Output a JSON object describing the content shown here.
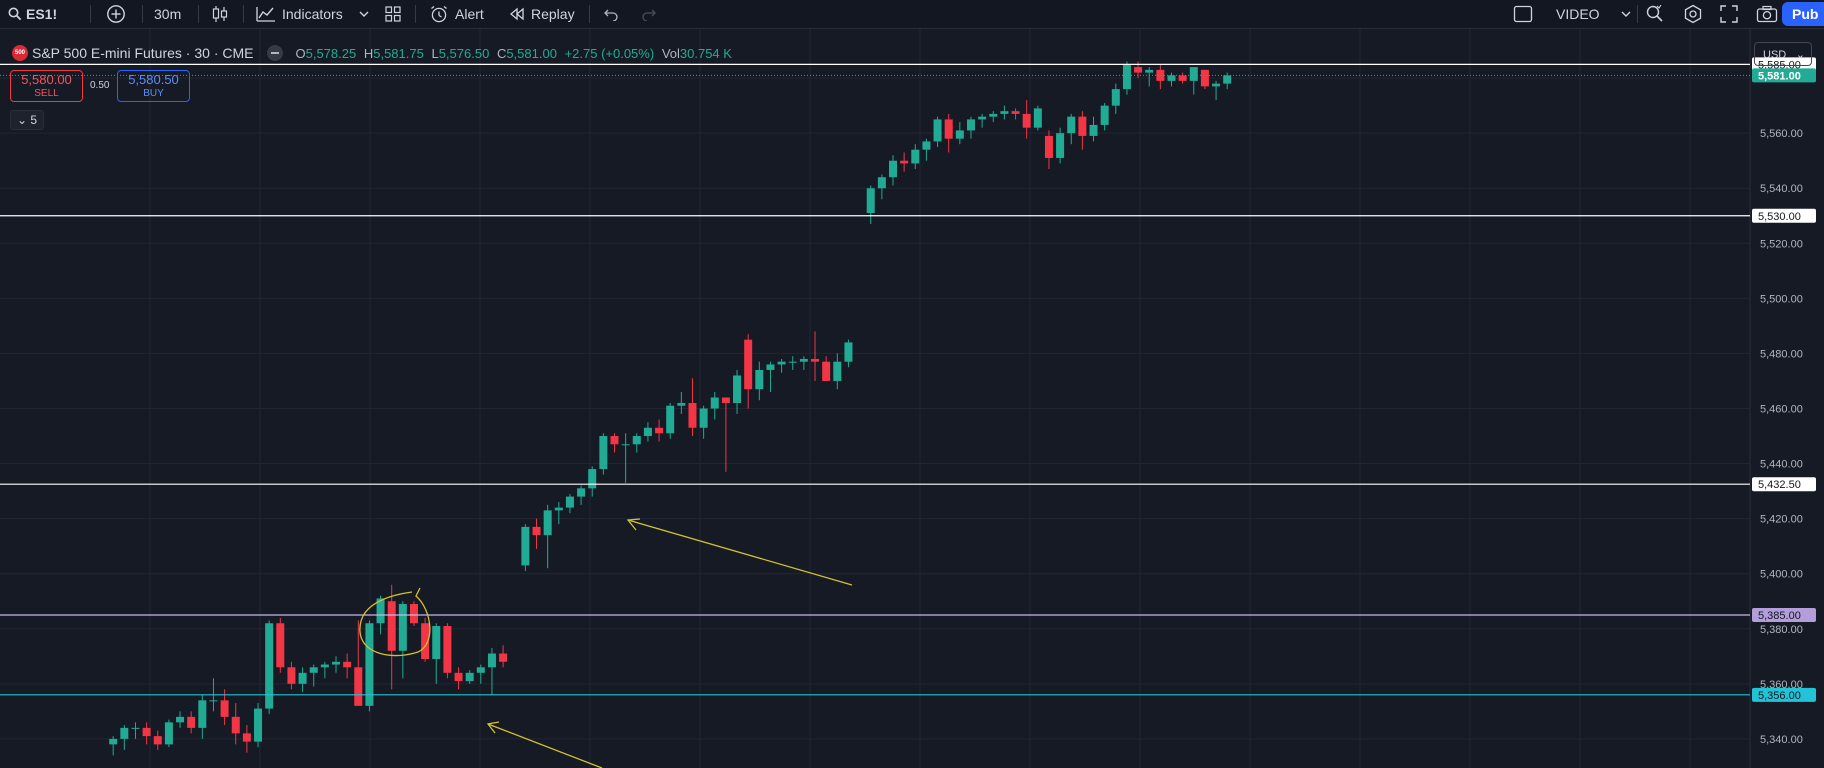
{
  "toolbar": {
    "symbol": "ES1!",
    "interval": "30m",
    "indicators_label": "Indicators",
    "alert_label": "Alert",
    "replay_label": "Replay",
    "video_label": "VIDEO",
    "publish_label": "Pub"
  },
  "legend": {
    "logo_text": "500",
    "title": "S&P 500 E-mini Futures · 30 · CME",
    "o_key": "O",
    "o_val": "5,578.25",
    "h_key": "H",
    "h_val": "5,581.75",
    "l_key": "L",
    "l_val": "5,576.50",
    "c_key": "C",
    "c_val": "5,581.00",
    "change": "+2.75 (+0.05%)",
    "vol_key": "Vol",
    "vol_val": "30.754 K"
  },
  "trade": {
    "sell_price": "5,580.00",
    "sell_label": "SELL",
    "spread": "0.50",
    "buy_price": "5,580.50",
    "buy_label": "BUY"
  },
  "indicator_count": "5",
  "currency": "USD",
  "colors": {
    "up": "#22ab94",
    "down": "#f23645",
    "annotation": "#d4c12e",
    "background": "#161a25"
  },
  "chart_data": {
    "type": "candlestick",
    "symbol": "ES1!",
    "interval": "30m",
    "y_axis_ticks": [
      5560,
      5540,
      5520,
      5500,
      5480,
      5460,
      5440,
      5420,
      5400,
      5380,
      5360,
      5340
    ],
    "y_axis_tick_labels": [
      "5,560.00",
      "5,540.00",
      "5,520.00",
      "5,500.00",
      "5,480.00",
      "5,460.00",
      "5,440.00",
      "5,420.00",
      "5,400.00",
      "5,380.00",
      "5,360.00",
      "5,340.00"
    ],
    "ylim": [
      5334,
      5600
    ],
    "grid": true,
    "horizontal_lines": [
      {
        "price": 5585.0,
        "label": "5,585.00",
        "color": "#ffffff",
        "label_bg": "#ffffff",
        "label_fg": "#131722"
      },
      {
        "price": 5530.0,
        "label": "5,530.00",
        "color": "#ffffff",
        "label_bg": "#ffffff",
        "label_fg": "#131722"
      },
      {
        "price": 5432.5,
        "label": "5,432.50",
        "color": "#ffffff",
        "label_bg": "#ffffff",
        "label_fg": "#131722"
      },
      {
        "price": 5385.0,
        "label": "5,385.00",
        "color": "#c5b8e6",
        "label_bg": "#b39ddb",
        "label_fg": "#131722"
      },
      {
        "price": 5356.0,
        "label": "5,356.00",
        "color": "#22c3d6",
        "label_bg": "#22c3d6",
        "label_fg": "#131722"
      }
    ],
    "last_price": {
      "price": 5581.0,
      "label": "5,581.00"
    },
    "candles": [
      [
        5338,
        5341,
        5334,
        5340
      ],
      [
        5340,
        5345,
        5336,
        5344
      ],
      [
        5344,
        5346,
        5340,
        5344
      ],
      [
        5344,
        5346,
        5338,
        5341
      ],
      [
        5341,
        5343,
        5336,
        5338
      ],
      [
        5338,
        5347,
        5337,
        5346
      ],
      [
        5346,
        5350,
        5344,
        5348
      ],
      [
        5348,
        5350,
        5342,
        5344
      ],
      [
        5344,
        5356,
        5340,
        5354
      ],
      [
        5354,
        5362,
        5350,
        5354
      ],
      [
        5354,
        5358,
        5345,
        5348
      ],
      [
        5348,
        5353,
        5338,
        5342
      ],
      [
        5342,
        5345,
        5335,
        5339
      ],
      [
        5339,
        5353,
        5337,
        5351
      ],
      [
        5351,
        5383,
        5349,
        5382
      ],
      [
        5382,
        5384,
        5364,
        5366
      ],
      [
        5366,
        5368,
        5358,
        5360
      ],
      [
        5360,
        5366,
        5357,
        5364
      ],
      [
        5364,
        5367,
        5359,
        5366
      ],
      [
        5366,
        5368,
        5362,
        5367
      ],
      [
        5367,
        5370,
        5364,
        5368
      ],
      [
        5368,
        5371,
        5362,
        5366
      ],
      [
        5366,
        5383,
        5352,
        5352
      ],
      [
        5352,
        5383,
        5350,
        5382
      ],
      [
        5382,
        5392,
        5378,
        5391
      ],
      [
        5390,
        5396,
        5358,
        5372
      ],
      [
        5372,
        5390,
        5362,
        5389
      ],
      [
        5389,
        5390,
        5381,
        5382
      ],
      [
        5382,
        5384,
        5368,
        5369
      ],
      [
        5369,
        5382,
        5360,
        5381
      ],
      [
        5381,
        5382,
        5362,
        5364
      ],
      [
        5364,
        5366,
        5358,
        5361
      ],
      [
        5361,
        5365,
        5360,
        5364
      ],
      [
        5364,
        5367,
        5360,
        5366
      ],
      [
        5366,
        5373,
        5356,
        5371
      ],
      [
        5371,
        5374,
        5366,
        5368
      ],
      null,
      [
        5403,
        5418,
        5401,
        5417
      ],
      [
        5417,
        5420,
        5409,
        5414
      ],
      [
        5414,
        5425,
        5402,
        5423
      ],
      [
        5423,
        5426,
        5418,
        5424
      ],
      [
        5424,
        5429,
        5422,
        5428
      ],
      [
        5428,
        5432,
        5425,
        5431
      ],
      [
        5431,
        5439,
        5428,
        5438
      ],
      [
        5438,
        5451,
        5436,
        5450
      ],
      [
        5450,
        5451,
        5444,
        5447
      ],
      [
        5447,
        5451,
        5433,
        5447
      ],
      [
        5447,
        5451,
        5444,
        5450
      ],
      [
        5450,
        5455,
        5448,
        5453
      ],
      [
        5453,
        5456,
        5448,
        5451
      ],
      [
        5451,
        5462,
        5449,
        5461
      ],
      [
        5461,
        5466,
        5458,
        5462
      ],
      [
        5462,
        5471,
        5450,
        5453
      ],
      [
        5453,
        5461,
        5449,
        5460
      ],
      [
        5460,
        5466,
        5456,
        5464
      ],
      [
        5464,
        5463,
        5437,
        5462
      ],
      [
        5462,
        5474,
        5458,
        5472
      ],
      [
        5485,
        5487,
        5460,
        5467
      ],
      [
        5467,
        5477,
        5463,
        5474
      ],
      [
        5474,
        5477,
        5466,
        5476
      ],
      [
        5476,
        5478,
        5473,
        5477
      ],
      [
        5477,
        5479,
        5474,
        5477
      ],
      [
        5477,
        5479,
        5474,
        5478
      ],
      [
        5478,
        5488,
        5470,
        5477
      ],
      [
        5477,
        5479,
        5470,
        5470
      ],
      [
        5470,
        5480,
        5467,
        5477
      ],
      [
        5477,
        5485,
        5475,
        5484
      ],
      null,
      [
        5531,
        5541,
        5527,
        5540
      ],
      [
        5540,
        5545,
        5536,
        5544
      ],
      [
        5544,
        5552,
        5541,
        5550
      ],
      [
        5550,
        5553,
        5546,
        5549
      ],
      [
        5549,
        5556,
        5547,
        5554
      ],
      [
        5554,
        5558,
        5550,
        5557
      ],
      [
        5557,
        5566,
        5555,
        5565
      ],
      [
        5565,
        5567,
        5553,
        5558
      ],
      [
        5558,
        5564,
        5556,
        5561
      ],
      [
        5561,
        5566,
        5558,
        5565
      ],
      [
        5565,
        5567,
        5562,
        5566
      ],
      [
        5566,
        5568,
        5564,
        5567
      ],
      [
        5567,
        5570,
        5565,
        5568
      ],
      [
        5568,
        5569,
        5565,
        5567
      ],
      [
        5567,
        5572,
        5558,
        5562
      ],
      [
        5562,
        5570,
        5561,
        5569
      ],
      [
        5559,
        5561,
        5547,
        5551
      ],
      [
        5551,
        5562,
        5549,
        5560
      ],
      [
        5560,
        5567,
        5556,
        5566
      ],
      [
        5566,
        5568,
        5554,
        5559
      ],
      [
        5559,
        5566,
        5557,
        5563
      ],
      [
        5563,
        5571,
        5561,
        5570
      ],
      [
        5570,
        5578,
        5567,
        5576
      ],
      [
        5576,
        5586,
        5574,
        5585
      ],
      [
        5584,
        5586,
        5580,
        5582
      ],
      [
        5582,
        5584,
        5577,
        5583
      ],
      [
        5583,
        5585,
        5576,
        5579
      ],
      [
        5579,
        5582,
        5577,
        5581
      ],
      [
        5581,
        5582,
        5578,
        5579
      ],
      [
        5579,
        5583,
        5574,
        5584
      ],
      [
        5583,
        5583,
        5576,
        5577
      ],
      [
        5577,
        5579,
        5572,
        5578
      ],
      [
        5578,
        5582,
        5576,
        5581
      ]
    ]
  }
}
